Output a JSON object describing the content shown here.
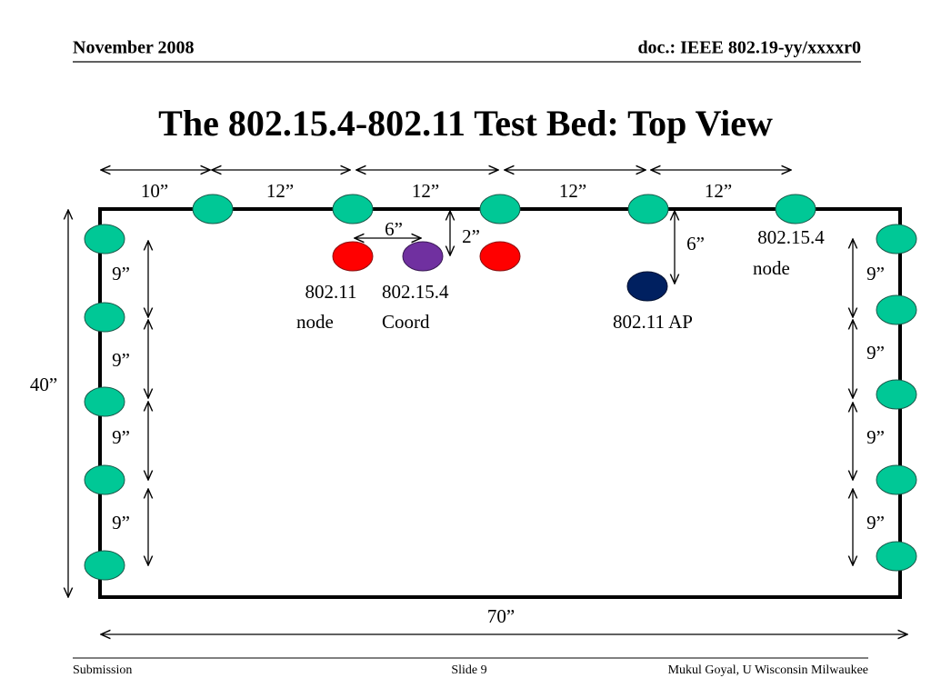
{
  "header": {
    "date": "November 2008",
    "doc": "doc.: IEEE 802.19-yy/xxxxr0"
  },
  "title": "The 802.15.4-802.11 Test Bed: Top View",
  "dimensions": {
    "top": [
      "10”",
      "12”",
      "12”",
      "12”",
      "12”"
    ],
    "coord_spacing": "6”",
    "coord_offset": "2”",
    "ap_offset": "6”",
    "left": [
      "9”",
      "9”",
      "9”",
      "9”"
    ],
    "right": [
      "9”",
      "9”",
      "9”",
      "9”"
    ],
    "height": "40”",
    "width": "70”"
  },
  "labels": {
    "wifi_node": [
      "802.11",
      "node"
    ],
    "coord": [
      "802.15.4",
      "Coord"
    ],
    "ap": "802.11 AP",
    "zigbee_node": [
      "802.15.4",
      "node"
    ]
  },
  "footer": {
    "left": "Submission",
    "center": "Slide 9",
    "right": "Mukul Goyal, U Wisconsin Milwaukee"
  }
}
